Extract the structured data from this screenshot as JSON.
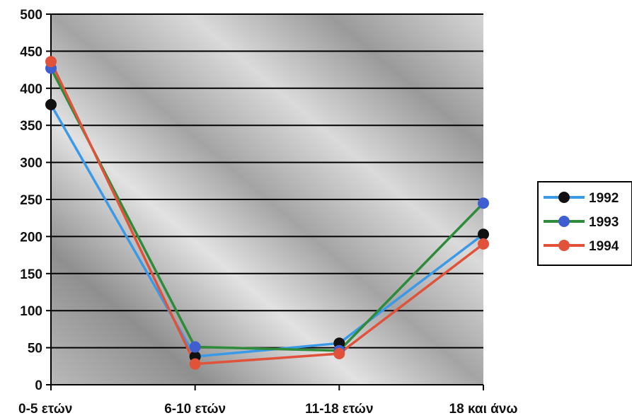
{
  "chart_data": {
    "type": "line",
    "title": "",
    "xlabel": "",
    "ylabel": "",
    "categories": [
      "0-5 ετών",
      "6-10 ετών",
      "11-18 ετών",
      "18 και άνω"
    ],
    "ylim": [
      0,
      500
    ],
    "yticks": [
      0,
      50,
      100,
      150,
      200,
      250,
      300,
      350,
      400,
      450,
      500
    ],
    "grid": true,
    "legend_position": "right",
    "series": [
      {
        "name": "1992",
        "values": [
          378,
          38,
          56,
          203
        ],
        "line_color": "#3b9ae8",
        "marker_color": "#111111"
      },
      {
        "name": "1993",
        "values": [
          427,
          51,
          46,
          245
        ],
        "line_color": "#2e8b3a",
        "marker_color": "#3f5fd0"
      },
      {
        "name": "1994",
        "values": [
          436,
          28,
          42,
          190
        ],
        "line_color": "#e0533a",
        "marker_color": "#e0533a"
      }
    ]
  }
}
